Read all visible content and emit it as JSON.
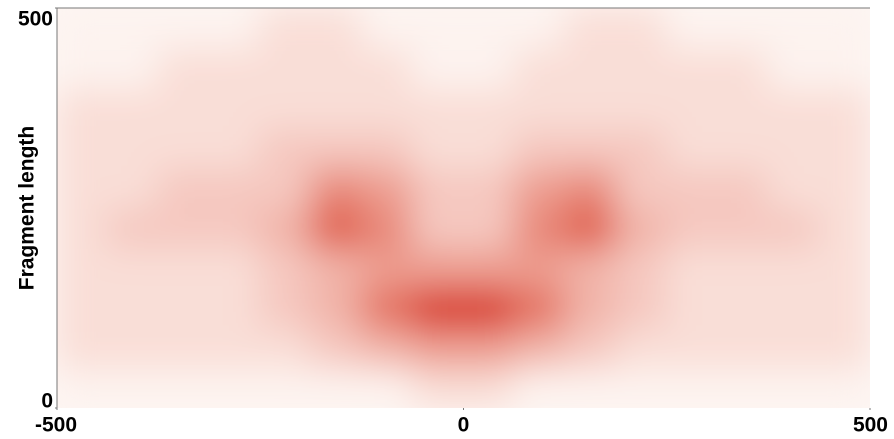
{
  "chart_data": {
    "type": "heatmap",
    "ylabel": "Fragment length",
    "xlim": [
      -500,
      500
    ],
    "ylim": [
      0,
      500
    ],
    "xticks": [
      -500,
      0,
      500
    ],
    "yticks": [
      0,
      500
    ],
    "colors": [
      "#fdf3ef",
      "#d8321a"
    ],
    "z": [
      [
        0,
        0,
        0,
        0,
        0,
        0,
        0,
        1,
        1,
        0,
        0,
        0,
        0,
        0,
        0,
        0
      ],
      [
        1,
        1,
        1,
        1,
        1,
        2,
        3,
        4,
        4,
        3,
        2,
        1,
        1,
        1,
        1,
        1
      ],
      [
        1,
        1,
        1,
        1,
        2,
        3,
        6,
        9,
        9,
        6,
        3,
        2,
        1,
        1,
        1,
        1
      ],
      [
        1,
        1,
        1,
        1,
        2,
        3,
        4,
        4,
        4,
        4,
        3,
        2,
        1,
        1,
        1,
        1
      ],
      [
        1,
        2,
        2,
        2,
        3,
        7,
        5,
        2,
        2,
        5,
        7,
        3,
        2,
        2,
        2,
        1
      ],
      [
        1,
        1,
        2,
        2,
        2,
        5,
        4,
        2,
        2,
        4,
        5,
        2,
        2,
        2,
        1,
        1
      ],
      [
        1,
        1,
        1,
        1,
        2,
        2,
        2,
        1,
        1,
        2,
        2,
        2,
        1,
        1,
        1,
        1
      ],
      [
        1,
        1,
        1,
        1,
        1,
        1,
        1,
        1,
        1,
        1,
        1,
        1,
        1,
        1,
        1,
        1
      ],
      [
        0,
        0,
        1,
        1,
        1,
        1,
        1,
        0,
        0,
        1,
        1,
        1,
        1,
        1,
        0,
        0
      ],
      [
        0,
        0,
        0,
        0,
        1,
        1,
        0,
        0,
        0,
        0,
        1,
        1,
        0,
        0,
        0,
        0
      ]
    ]
  }
}
